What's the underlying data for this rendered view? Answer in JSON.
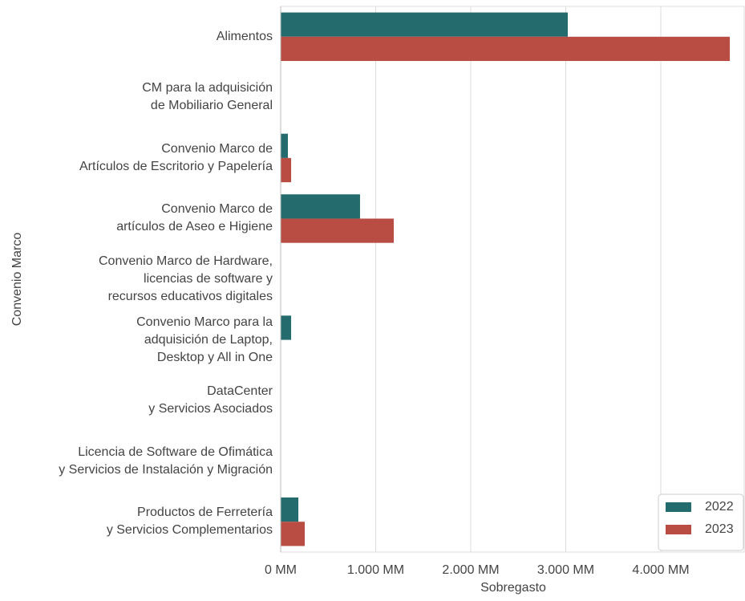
{
  "chart_data": {
    "type": "barh",
    "xlabel": "Sobregasto",
    "ylabel": "Convenio Marco",
    "categories": [
      "Alimentos",
      "CM para la adquisición\nde Mobiliario General",
      "Convenio Marco de\nArtículos de Escritorio y Papelería",
      "Convenio Marco de\nartículos de Aseo e Higiene",
      "Convenio Marco de Hardware,\nlicencias de software y\nrecursos educativos digitales",
      "Convenio Marco para la\nadquisición de Laptop,\nDesktop y All in One",
      "DataCenter\ny Servicios Asociados",
      "Licencia de Software de Ofimática\ny Servicios de Instalación y Migración",
      "Productos de Ferretería\ny Servicios Complementarios"
    ],
    "series": [
      {
        "name": "2022",
        "color": "#236b6d",
        "values": [
          3021,
          0,
          76,
          835,
          0,
          110,
          0,
          0,
          186
        ]
      },
      {
        "name": "2023",
        "color": "#b94c43",
        "values": [
          4726,
          0,
          110,
          1190,
          0,
          0,
          0,
          0,
          253
        ]
      }
    ],
    "xlim": [
      0,
      4886
    ],
    "xticks": [
      {
        "value": 0,
        "label": "0 MM"
      },
      {
        "value": 1000,
        "label": "1.000 MM"
      },
      {
        "value": 2000,
        "label": "2.000 MM"
      },
      {
        "value": 3000,
        "label": "3.000 MM"
      },
      {
        "value": 4000,
        "label": "4.000 MM"
      }
    ],
    "grid": true,
    "legend": "lower right"
  }
}
